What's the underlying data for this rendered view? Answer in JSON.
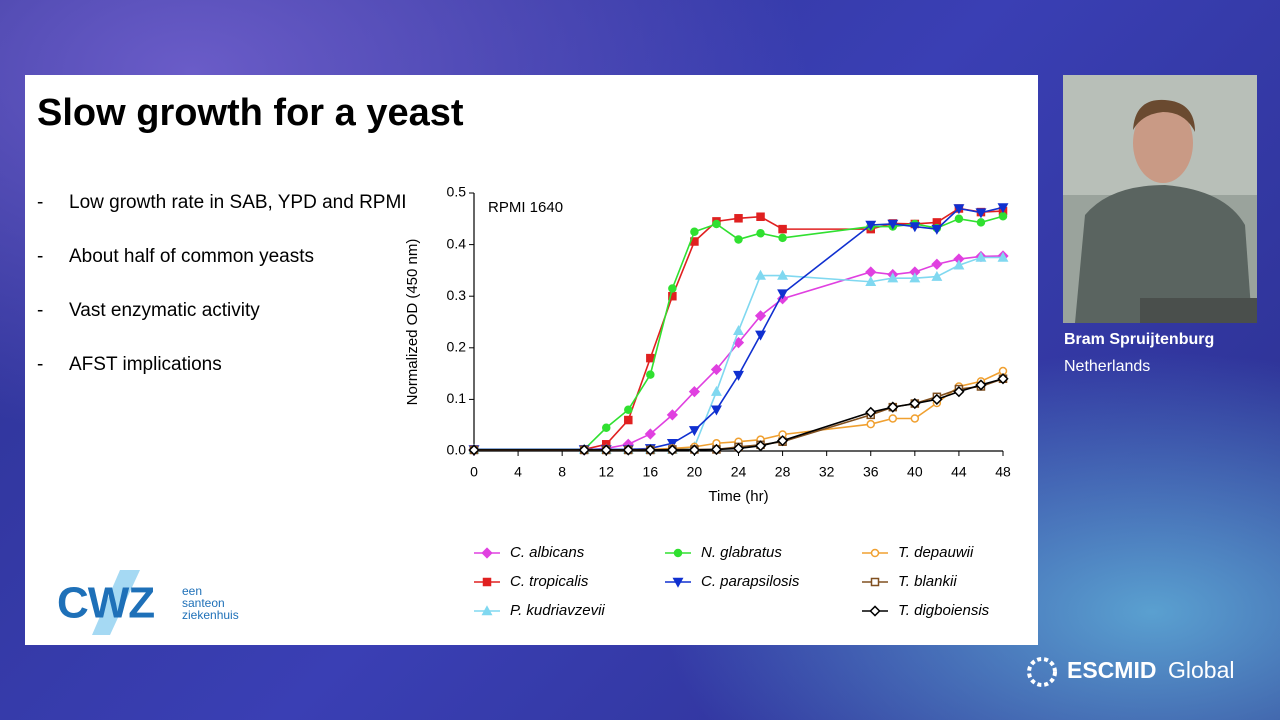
{
  "slide": {
    "title": "Slow growth for a yeast",
    "bullet_marker": "-",
    "bullets": [
      "Low growth rate in SAB, YPD and RPMI",
      "About half of common yeasts",
      "Vast enzymatic activity",
      "AFST implications"
    ]
  },
  "logo": {
    "name": "CWZ",
    "tagline": [
      "een",
      "santeon",
      "ziekenhuis"
    ]
  },
  "speaker": {
    "name": "Bram Spruijtenburg",
    "country": "Netherlands"
  },
  "event_logo": {
    "name": "ESCMID",
    "suffix": "Global"
  },
  "chart_data": {
    "type": "line",
    "annotation": "RPMI 1640",
    "xlabel": "Time (hr)",
    "ylabel": "Normalized OD (450 nm)",
    "x": [
      0,
      10,
      12,
      14,
      16,
      18,
      20,
      22,
      24,
      26,
      28,
      36,
      38,
      40,
      42,
      44,
      46,
      48
    ],
    "xlim": [
      0,
      48
    ],
    "xticks": [
      0,
      4,
      8,
      12,
      16,
      20,
      24,
      28,
      32,
      36,
      40,
      44,
      48
    ],
    "ylim": [
      0,
      0.5
    ],
    "yticks": [
      {
        "value": 0,
        "label": "0.0"
      },
      0.1,
      0.2,
      0.3,
      0.4,
      0.5
    ],
    "series": [
      {
        "name": "C. albicans",
        "color": "#e040e0",
        "marker": "diamond",
        "values": [
          0.002,
          0.002,
          0.005,
          0.013,
          0.033,
          0.07,
          0.115,
          0.158,
          0.21,
          0.262,
          0.295,
          0.347,
          0.342,
          0.347,
          0.362,
          0.372,
          0.377,
          0.378
        ]
      },
      {
        "name": "C. tropicalis",
        "color": "#e02020",
        "marker": "square",
        "values": [
          0.003,
          0.003,
          0.013,
          0.06,
          0.18,
          0.3,
          0.406,
          0.445,
          0.451,
          0.454,
          0.43,
          0.43,
          0.441,
          0.44,
          0.443,
          0.47,
          0.463,
          0.465
        ]
      },
      {
        "name": "P. kudriavzevii",
        "color": "#80d8f0",
        "marker": "triangle",
        "values": [
          0.003,
          0.003,
          0.003,
          0.003,
          0.003,
          0.003,
          0.008,
          0.115,
          0.233,
          0.34,
          0.34,
          0.328,
          0.335,
          0.335,
          0.338,
          0.36,
          0.375,
          0.375
        ]
      },
      {
        "name": "N. glabratus",
        "color": "#30e030",
        "marker": "circle",
        "values": [
          0.003,
          0.003,
          0.045,
          0.08,
          0.148,
          0.315,
          0.425,
          0.44,
          0.41,
          0.422,
          0.413,
          0.435,
          0.435,
          0.44,
          0.432,
          0.45,
          0.443,
          0.455
        ]
      },
      {
        "name": "C. parapsilosis",
        "color": "#1030d0",
        "marker": "triangle-down",
        "values": [
          0.003,
          0.003,
          0.003,
          0.003,
          0.005,
          0.015,
          0.04,
          0.08,
          0.147,
          0.225,
          0.305,
          0.438,
          0.44,
          0.435,
          0.43,
          0.47,
          0.462,
          0.472
        ]
      },
      {
        "name": "T. depauwii",
        "color": "#f0a030",
        "marker": "circle-open",
        "values": [
          0.002,
          0.002,
          0.002,
          0.002,
          0.003,
          0.005,
          0.008,
          0.015,
          0.018,
          0.022,
          0.032,
          0.052,
          0.063,
          0.063,
          0.093,
          0.125,
          0.135,
          0.155
        ]
      },
      {
        "name": "T. blankii",
        "color": "#805020",
        "marker": "square-open",
        "values": [
          0.002,
          0.002,
          0.002,
          0.002,
          0.002,
          0.003,
          0.003,
          0.003,
          0.008,
          0.012,
          0.018,
          0.07,
          0.085,
          0.092,
          0.105,
          0.12,
          0.125,
          0.14
        ]
      },
      {
        "name": "T. digboiensis",
        "color": "#000000",
        "marker": "diamond-open",
        "values": [
          0.002,
          0.002,
          0.002,
          0.002,
          0.002,
          0.002,
          0.002,
          0.003,
          0.005,
          0.01,
          0.02,
          0.075,
          0.085,
          0.092,
          0.1,
          0.115,
          0.128,
          0.14
        ]
      }
    ]
  }
}
